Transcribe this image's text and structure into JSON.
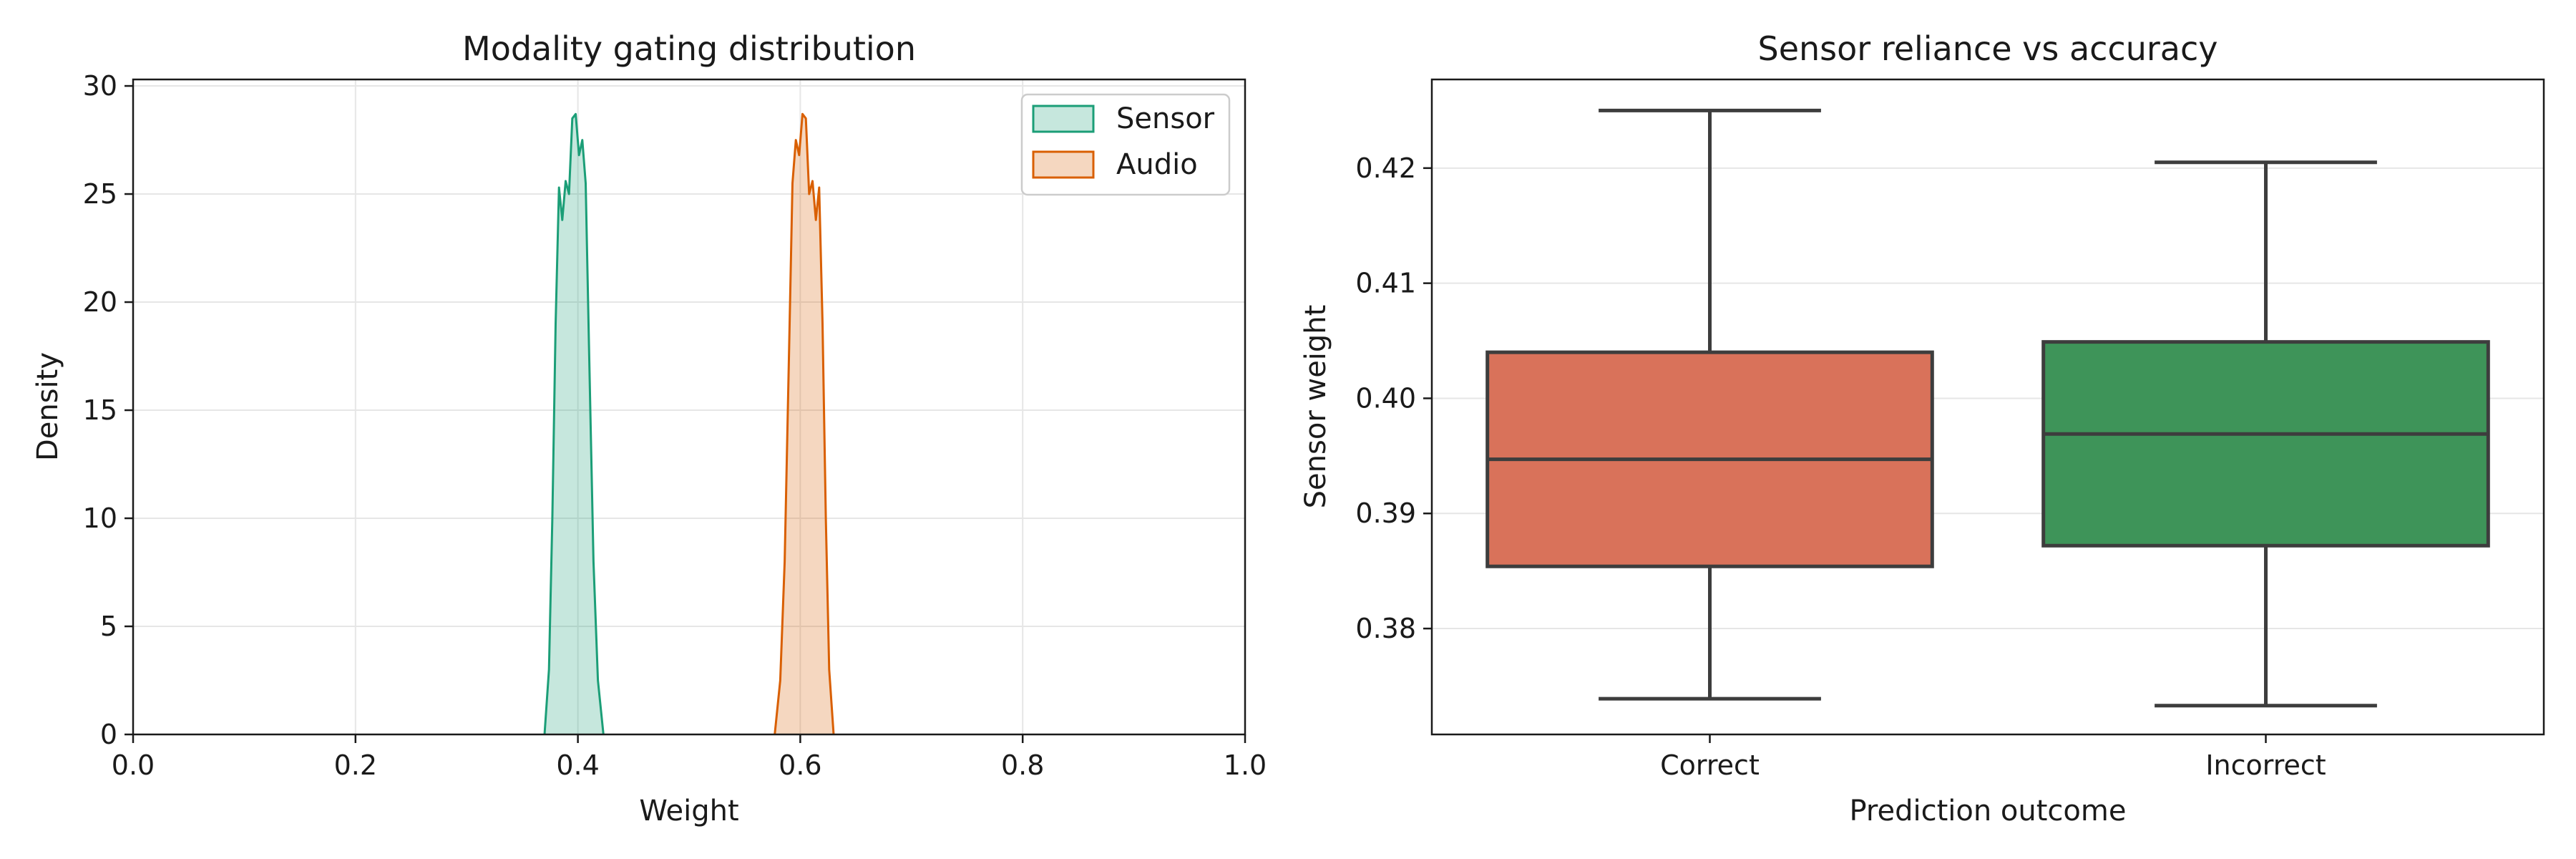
{
  "chart_data": [
    {
      "type": "area",
      "title": "Modality gating distribution",
      "xlabel": "Weight",
      "ylabel": "Density",
      "xlim": [
        0.0,
        1.0
      ],
      "ylim": [
        0,
        30.3
      ],
      "xticks": [
        "0.0",
        "0.2",
        "0.4",
        "0.6",
        "0.8",
        "1.0"
      ],
      "yticks": [
        "0",
        "5",
        "10",
        "15",
        "20",
        "25",
        "30"
      ],
      "grid": true,
      "legend_position": "top-right",
      "series": [
        {
          "name": "Sensor",
          "color": "#1b9e77",
          "points": [
            [
              0.37,
              0
            ],
            [
              0.374,
              3
            ],
            [
              0.377,
              10
            ],
            [
              0.38,
              19
            ],
            [
              0.383,
              25.3
            ],
            [
              0.386,
              23.8
            ],
            [
              0.389,
              25.6
            ],
            [
              0.392,
              25.0
            ],
            [
              0.395,
              28.5
            ],
            [
              0.398,
              28.7
            ],
            [
              0.401,
              26.8
            ],
            [
              0.404,
              27.5
            ],
            [
              0.407,
              25.5
            ],
            [
              0.41,
              18
            ],
            [
              0.414,
              8
            ],
            [
              0.418,
              2.5
            ],
            [
              0.423,
              0
            ]
          ]
        },
        {
          "name": "Audio",
          "color": "#d95f02",
          "points": [
            [
              0.577,
              0
            ],
            [
              0.582,
              2.5
            ],
            [
              0.586,
              8
            ],
            [
              0.59,
              18
            ],
            [
              0.593,
              25.5
            ],
            [
              0.596,
              27.5
            ],
            [
              0.599,
              26.8
            ],
            [
              0.602,
              28.7
            ],
            [
              0.605,
              28.5
            ],
            [
              0.608,
              25.0
            ],
            [
              0.611,
              25.6
            ],
            [
              0.614,
              23.8
            ],
            [
              0.617,
              25.3
            ],
            [
              0.62,
              19
            ],
            [
              0.623,
              10
            ],
            [
              0.626,
              3
            ],
            [
              0.63,
              0
            ]
          ]
        }
      ]
    },
    {
      "type": "box",
      "title": "Sensor reliance vs accuracy",
      "xlabel": "Prediction outcome",
      "ylabel": "Sensor weight",
      "ylim": [
        0.3708,
        0.4277
      ],
      "yticks": [
        "0.38",
        "0.39",
        "0.40",
        "0.41",
        "0.42"
      ],
      "grid": true,
      "categories": [
        "Correct",
        "Incorrect"
      ],
      "boxes": [
        {
          "category": "Correct",
          "color": "#d9725a",
          "whisker_low": 0.3739,
          "q1": 0.3854,
          "median": 0.3947,
          "q3": 0.404,
          "whisker_high": 0.425
        },
        {
          "category": "Incorrect",
          "color": "#3e9459",
          "whisker_low": 0.3733,
          "q1": 0.3872,
          "median": 0.3969,
          "q3": 0.4049,
          "whisker_high": 0.4205
        }
      ]
    }
  ]
}
